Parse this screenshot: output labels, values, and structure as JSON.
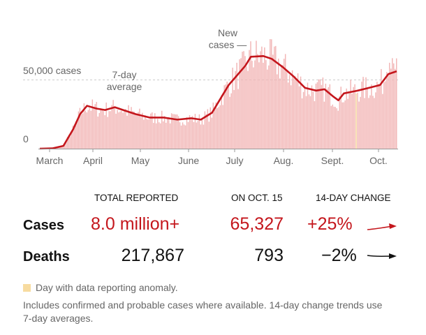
{
  "chart_data": {
    "type": "bar",
    "title": "",
    "ylim": [
      0,
      80000
    ],
    "y_ticks": [
      {
        "value": 0,
        "label": "0"
      },
      {
        "value": 50000,
        "label": "50,000 cases"
      }
    ],
    "x_tick_labels": [
      "March",
      "April",
      "May",
      "June",
      "July",
      "Aug.",
      "Sept.",
      "Oct."
    ],
    "annotations": {
      "bars": [
        "New",
        "cases —"
      ],
      "line": [
        "7-day",
        "average"
      ]
    },
    "series": [
      {
        "name": "New cases",
        "kind": "bar",
        "note": "daily values shown as bars"
      },
      {
        "name": "7-day average",
        "kind": "line",
        "points": [
          {
            "day": 1,
            "value": 0
          },
          {
            "day": 10,
            "value": 200
          },
          {
            "day": 18,
            "value": 2000
          },
          {
            "day": 25,
            "value": 14000
          },
          {
            "day": 30,
            "value": 25000
          },
          {
            "day": 35,
            "value": 31000
          },
          {
            "day": 42,
            "value": 29000
          },
          {
            "day": 48,
            "value": 28000
          },
          {
            "day": 55,
            "value": 30000
          },
          {
            "day": 61,
            "value": 28000
          },
          {
            "day": 70,
            "value": 25000
          },
          {
            "day": 80,
            "value": 22500
          },
          {
            "day": 90,
            "value": 22500
          },
          {
            "day": 100,
            "value": 21000
          },
          {
            "day": 110,
            "value": 22000
          },
          {
            "day": 117,
            "value": 21000
          },
          {
            "day": 125,
            "value": 26000
          },
          {
            "day": 131,
            "value": 36000
          },
          {
            "day": 137,
            "value": 46000
          },
          {
            "day": 143,
            "value": 53000
          },
          {
            "day": 149,
            "value": 60000
          },
          {
            "day": 153,
            "value": 66500
          },
          {
            "day": 162,
            "value": 67000
          },
          {
            "day": 168,
            "value": 65000
          },
          {
            "day": 176,
            "value": 59000
          },
          {
            "day": 184,
            "value": 52000
          },
          {
            "day": 192,
            "value": 44000
          },
          {
            "day": 200,
            "value": 42000
          },
          {
            "day": 206,
            "value": 43000
          },
          {
            "day": 212,
            "value": 38000
          },
          {
            "day": 216,
            "value": 35000
          },
          {
            "day": 220,
            "value": 40000
          },
          {
            "day": 230,
            "value": 42000
          },
          {
            "day": 238,
            "value": 44000
          },
          {
            "day": 246,
            "value": 46000
          },
          {
            "day": 252,
            "value": 54000
          },
          {
            "day": 258,
            "value": 56000
          }
        ]
      }
    ]
  },
  "table": {
    "headers": {
      "total": "TOTAL REPORTED",
      "day": "ON OCT. 15",
      "change": "14-DAY CHANGE"
    },
    "rows": [
      {
        "label": "Cases",
        "total": "8.0 million+",
        "day": "65,327",
        "change": "+25%"
      },
      {
        "label": "Deaths",
        "total": "217,867",
        "day": "793",
        "change": "−2%"
      }
    ]
  },
  "legend": "Day with data reporting anomaly.",
  "note": "Includes confirmed and probable cases where available. 14-day change trends use 7-day averages.",
  "colors": {
    "red": "#c4161c",
    "bar": "#f2b6b6",
    "anomaly": "#f7dba0",
    "text": "#121212",
    "muted": "#666666"
  }
}
